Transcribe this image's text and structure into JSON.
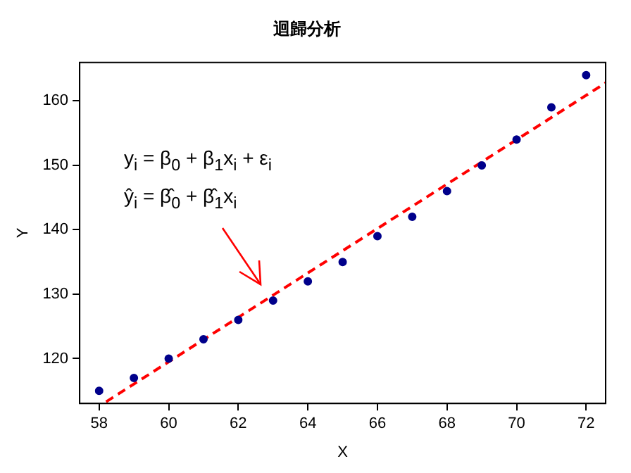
{
  "chart_data": {
    "type": "scatter",
    "title": "迴歸分析",
    "xlabel": "X",
    "ylabel": "Y",
    "x": [
      58,
      59,
      60,
      61,
      62,
      63,
      64,
      65,
      66,
      67,
      68,
      69,
      70,
      71,
      72
    ],
    "series": [
      {
        "type": "scatter",
        "color": "#00008b",
        "marker": "circle",
        "values": [
          115,
          117,
          120,
          123,
          126,
          129,
          132,
          135,
          139,
          142,
          146,
          150,
          154,
          159,
          164
        ]
      },
      {
        "type": "line",
        "color": "#ff0000",
        "line_style": "dashed",
        "marker": "none",
        "x": [
          58.2,
          72.56
        ],
        "values": [
          113.3,
          162.8
        ]
      }
    ],
    "xlim": [
      57.44,
      72.56
    ],
    "ylim": [
      113.04,
      165.96
    ],
    "xticks": [
      58,
      60,
      62,
      64,
      66,
      68,
      70,
      72
    ],
    "yticks": [
      120,
      130,
      140,
      150,
      160
    ],
    "grid": false,
    "legend": false,
    "annotations": [
      "y$_{i}$ = β$_{0}$ + β$_{1}$x$_{i}$ + ε$_{i}$",
      "ŷ$_{i}$ = β̂$_{0}$ + β̂$_{1}$x$_{i}$"
    ]
  }
}
